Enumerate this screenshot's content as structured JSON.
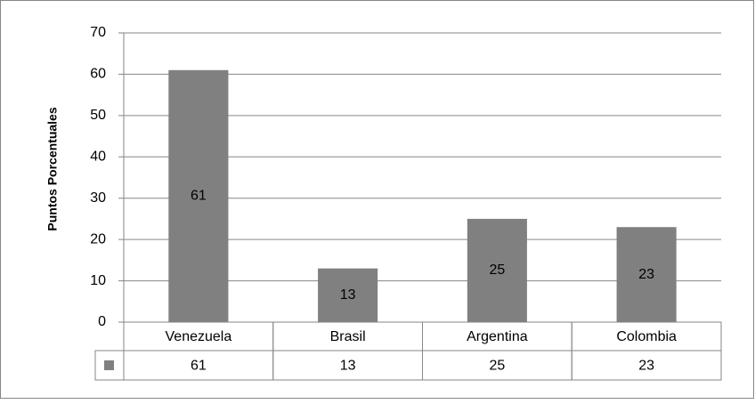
{
  "chart_data": {
    "type": "bar",
    "y_label": "Puntos Porcentuales",
    "categories": [
      "Venezuela",
      "Brasil",
      "Argentina",
      "Colombia"
    ],
    "values": [
      61,
      13,
      25,
      23
    ],
    "color": "#808080",
    "ylim": [
      0,
      70
    ],
    "yticks": [
      0,
      10,
      20,
      30,
      40,
      50,
      60,
      70
    ],
    "grid": true,
    "data_table": true
  }
}
